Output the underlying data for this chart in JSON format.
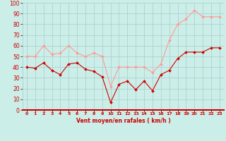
{
  "x": [
    0,
    1,
    2,
    3,
    4,
    5,
    6,
    7,
    8,
    9,
    10,
    11,
    12,
    13,
    14,
    15,
    16,
    17,
    18,
    19,
    20,
    21,
    22,
    23
  ],
  "wind_avg": [
    40,
    39,
    44,
    37,
    33,
    43,
    44,
    38,
    36,
    31,
    7,
    24,
    27,
    19,
    27,
    18,
    33,
    37,
    48,
    54,
    54,
    54,
    58,
    58
  ],
  "wind_gust": [
    50,
    50,
    60,
    52,
    53,
    60,
    53,
    50,
    53,
    50,
    22,
    40,
    40,
    40,
    40,
    35,
    43,
    65,
    80,
    85,
    93,
    87,
    87,
    87
  ],
  "avg_color": "#cc0000",
  "gust_color": "#ff9999",
  "bg_color": "#cceee8",
  "grid_color": "#aacccc",
  "xlabel": "Vent moyen/en rafales ( km/h )",
  "ylim": [
    0,
    100
  ],
  "xlim_min": -0.5,
  "xlim_max": 23.5,
  "yticks": [
    0,
    10,
    20,
    30,
    40,
    50,
    60,
    70,
    80,
    90,
    100
  ],
  "xticks": [
    0,
    1,
    2,
    3,
    4,
    5,
    6,
    7,
    8,
    9,
    10,
    11,
    12,
    13,
    14,
    15,
    16,
    17,
    18,
    19,
    20,
    21,
    22,
    23
  ]
}
